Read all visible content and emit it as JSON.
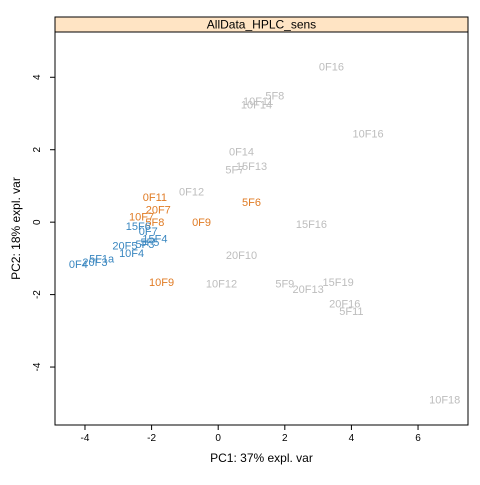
{
  "chart_data": {
    "type": "scatter",
    "title": "AllData_HPLC_sens",
    "xlabel": "PC1: 37% expl. var",
    "ylabel": "PC2: 18% expl. var",
    "xlim": [
      -4.9,
      7.5
    ],
    "ylim": [
      -5.6,
      5.25
    ],
    "x_ticks": [
      -4,
      -2,
      0,
      2,
      4,
      6
    ],
    "y_ticks": [
      -4,
      -2,
      0,
      2,
      4
    ],
    "grid": false,
    "legend": "none",
    "series": [
      {
        "color": "#bdbdbd",
        "points": [
          {
            "label": "0F16",
            "x": 3.4,
            "y": 4.3
          },
          {
            "label": "5F8",
            "x": 1.7,
            "y": 3.5
          },
          {
            "label": "10F11",
            "x": 1.2,
            "y": 3.35
          },
          {
            "label": "10F14",
            "x": 1.15,
            "y": 3.25
          },
          {
            "label": "10F16",
            "x": 4.5,
            "y": 2.45
          },
          {
            "label": "0F14",
            "x": 0.7,
            "y": 1.95
          },
          {
            "label": "15F13",
            "x": 1.0,
            "y": 1.55
          },
          {
            "label": "5F7",
            "x": 0.5,
            "y": 1.45
          },
          {
            "label": "0F12",
            "x": -0.8,
            "y": 0.85
          },
          {
            "label": "15F16",
            "x": 2.8,
            "y": -0.05
          },
          {
            "label": "20F10",
            "x": 0.7,
            "y": -0.9
          },
          {
            "label": "10F12",
            "x": 0.1,
            "y": -1.7
          },
          {
            "label": "5F9",
            "x": 2.0,
            "y": -1.7
          },
          {
            "label": "20F13",
            "x": 2.7,
            "y": -1.85
          },
          {
            "label": "15F19",
            "x": 3.6,
            "y": -1.65
          },
          {
            "label": "20F16",
            "x": 3.8,
            "y": -2.25
          },
          {
            "label": "5F11",
            "x": 4.0,
            "y": -2.45
          },
          {
            "label": "10F18",
            "x": 6.8,
            "y": -4.9
          }
        ]
      },
      {
        "color": "#e07b24",
        "points": [
          {
            "label": "0F11",
            "x": -1.9,
            "y": 0.7
          },
          {
            "label": "20F7",
            "x": -1.8,
            "y": 0.35
          },
          {
            "label": "10F7",
            "x": -2.3,
            "y": 0.15
          },
          {
            "label": "5F8",
            "x": -1.9,
            "y": 0.0
          },
          {
            "label": "0F9",
            "x": -0.5,
            "y": 0.0
          },
          {
            "label": "5F6",
            "x": 1.0,
            "y": 0.55
          },
          {
            "label": "10F9",
            "x": -1.7,
            "y": -1.65
          }
        ]
      },
      {
        "color": "#3a87c0",
        "points": [
          {
            "label": "15F6",
            "x": -2.4,
            "y": -0.1
          },
          {
            "label": "0F7",
            "x": -2.1,
            "y": -0.25
          },
          {
            "label": "15F4",
            "x": -1.9,
            "y": -0.45
          },
          {
            "label": "20F5",
            "x": -2.8,
            "y": -0.65
          },
          {
            "label": "5F3",
            "x": -2.2,
            "y": -0.6
          },
          {
            "label": "5F5",
            "x": -2.05,
            "y": -0.55
          },
          {
            "label": "10F4",
            "x": -2.6,
            "y": -0.85
          },
          {
            "label": "5F1a",
            "x": -3.5,
            "y": -1.0
          },
          {
            "label": "20F3",
            "x": -3.7,
            "y": -1.1
          },
          {
            "label": "0F4",
            "x": -4.2,
            "y": -1.15
          }
        ]
      }
    ]
  }
}
